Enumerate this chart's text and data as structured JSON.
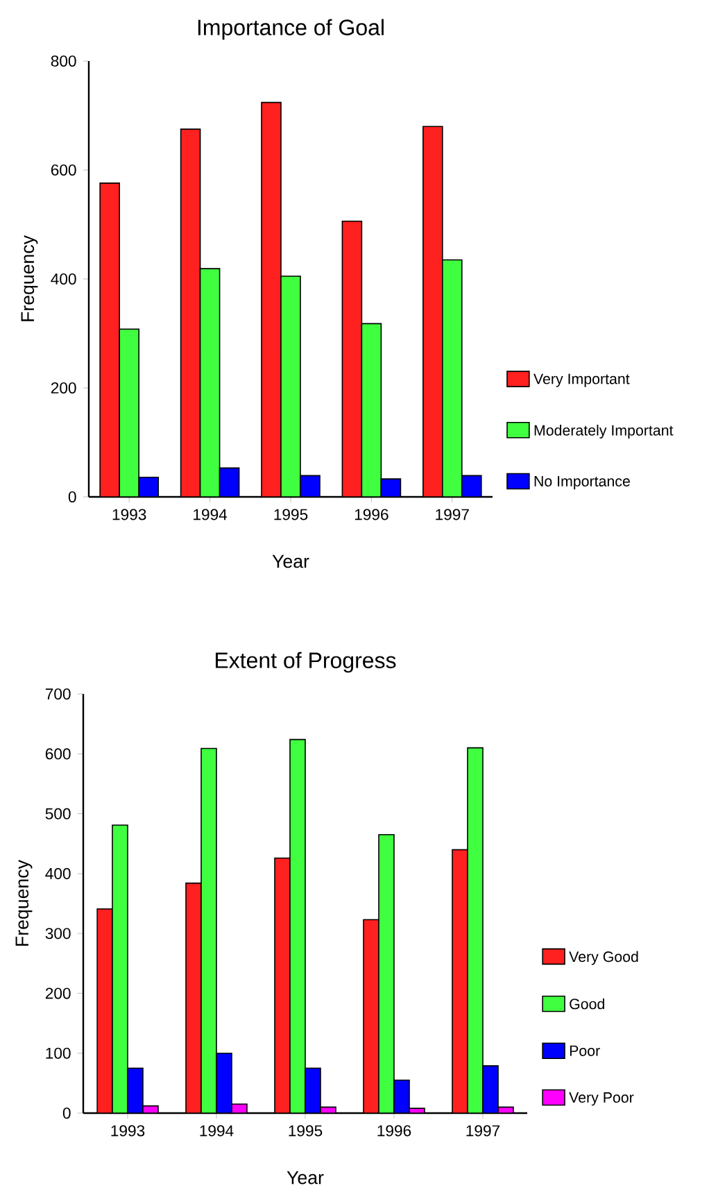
{
  "chart_data": [
    {
      "type": "bar",
      "title": "Importance of Goal",
      "xlabel": "Year",
      "ylabel": "Frequency",
      "categories": [
        "1993",
        "1994",
        "1995",
        "1996",
        "1997"
      ],
      "series": [
        {
          "name": "Very Important",
          "color": "#ff2020",
          "values": [
            576,
            675,
            724,
            506,
            680
          ]
        },
        {
          "name": "Moderately Important",
          "color": "#40ff40",
          "values": [
            308,
            419,
            405,
            318,
            435
          ]
        },
        {
          "name": "No Importance",
          "color": "#0000ff",
          "values": [
            36,
            53,
            39,
            33,
            39
          ]
        }
      ],
      "ylim": [
        0,
        800
      ],
      "yticks": [
        0,
        200,
        400,
        600,
        800
      ],
      "legend": "right"
    },
    {
      "type": "bar",
      "title": "Extent of Progress",
      "xlabel": "Year",
      "ylabel": "Frequency",
      "categories": [
        "1993",
        "1994",
        "1995",
        "1996",
        "1997"
      ],
      "series": [
        {
          "name": "Very Good",
          "color": "#ff2020",
          "values": [
            341,
            384,
            426,
            323,
            440
          ]
        },
        {
          "name": "Good",
          "color": "#40ff40",
          "values": [
            481,
            609,
            624,
            465,
            610
          ]
        },
        {
          "name": "Poor",
          "color": "#0000ff",
          "values": [
            75,
            100,
            75,
            55,
            79
          ]
        },
        {
          "name": "Very Poor",
          "color": "#ff00ff",
          "values": [
            12,
            15,
            10,
            8,
            10
          ]
        }
      ],
      "ylim": [
        0,
        700
      ],
      "yticks": [
        0,
        100,
        200,
        300,
        400,
        500,
        600,
        700
      ],
      "legend": "right"
    }
  ]
}
